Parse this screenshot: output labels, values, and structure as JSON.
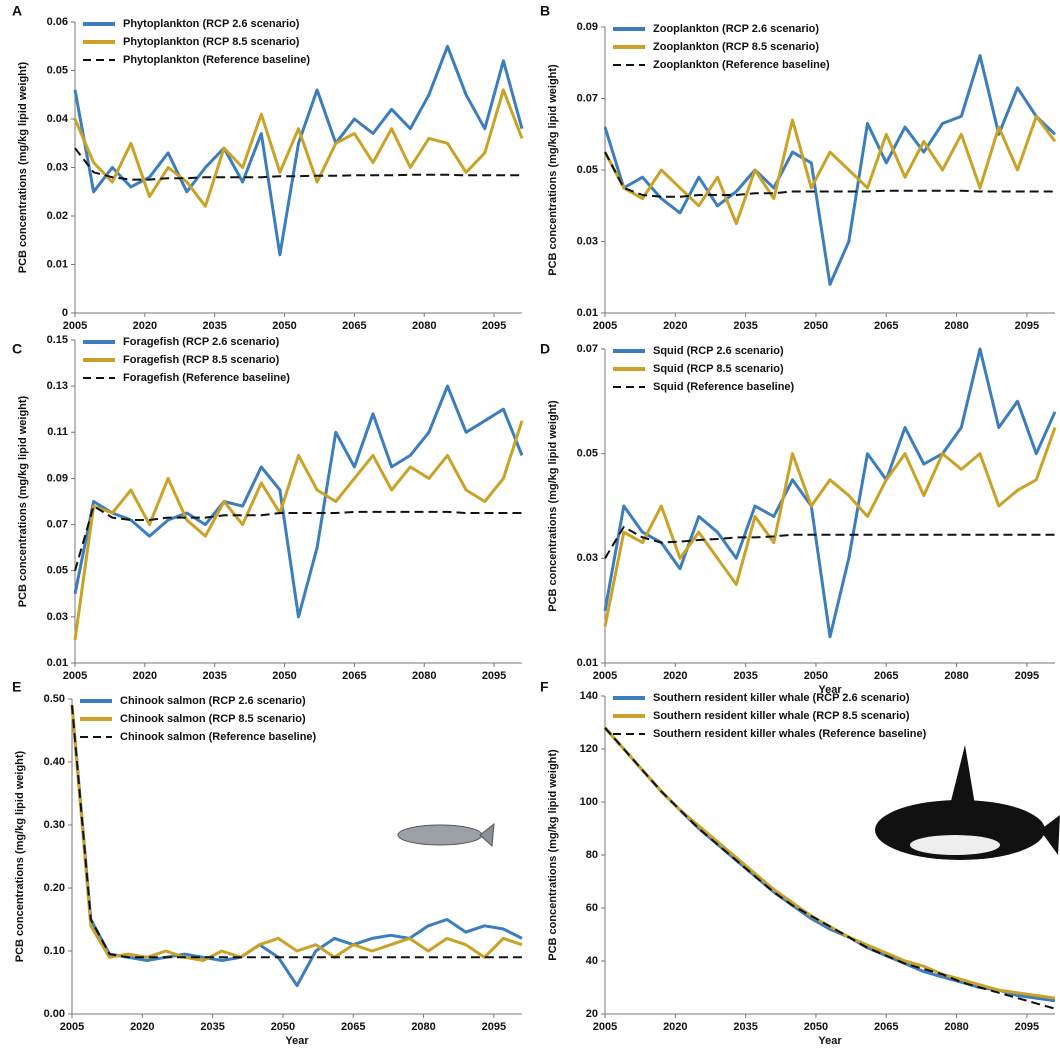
{
  "chart_data": [
    {
      "type": "line",
      "label": "A",
      "ylabel": "PCB concentrations (mg/kg lipid weight)",
      "x": [
        2005,
        2009,
        2013,
        2017,
        2021,
        2025,
        2029,
        2033,
        2037,
        2041,
        2045,
        2049,
        2053,
        2057,
        2061,
        2065,
        2069,
        2073,
        2077,
        2081,
        2085,
        2089,
        2093,
        2097,
        2101
      ],
      "xlim": [
        2005,
        2101
      ],
      "xticks": [
        2005,
        2020,
        2035,
        2050,
        2065,
        2080,
        2095
      ],
      "ylim": [
        0,
        0.06
      ],
      "yticks": [
        0,
        0.01,
        0.02,
        0.03,
        0.04,
        0.05,
        0.06
      ],
      "legend": "upper left",
      "series": [
        {
          "name": "Phytoplankton (RCP 2.6 scenario)",
          "color": "#3b7dbd",
          "linestyle": "solid",
          "values": [
            0.046,
            0.025,
            0.03,
            0.026,
            0.028,
            0.033,
            0.025,
            0.03,
            0.034,
            0.027,
            0.037,
            0.012,
            0.035,
            0.046,
            0.035,
            0.04,
            0.037,
            0.042,
            0.038,
            0.045,
            0.055,
            0.045,
            0.038,
            0.052,
            0.038
          ]
        },
        {
          "name": "Phytoplankton (RCP 8.5 scenario)",
          "color": "#c9a227",
          "linestyle": "solid",
          "values": [
            0.04,
            0.031,
            0.027,
            0.035,
            0.024,
            0.03,
            0.027,
            0.022,
            0.034,
            0.03,
            0.041,
            0.029,
            0.038,
            0.027,
            0.035,
            0.037,
            0.031,
            0.038,
            0.03,
            0.036,
            0.035,
            0.029,
            0.033,
            0.046,
            0.036
          ]
        },
        {
          "name": "Phytoplankton (Reference baseline)",
          "color": "#111111",
          "linestyle": "dashed",
          "values": [
            0.034,
            0.029,
            0.028,
            0.0275,
            0.0275,
            0.0278,
            0.0278,
            0.028,
            0.028,
            0.028,
            0.028,
            0.0282,
            0.0282,
            0.0283,
            0.0283,
            0.0284,
            0.0284,
            0.0284,
            0.0285,
            0.0285,
            0.0285,
            0.0284,
            0.0284,
            0.0284,
            0.0284
          ]
        }
      ]
    },
    {
      "type": "line",
      "label": "B",
      "ylabel": "PCB concentrations (mg/kg lipid weight)",
      "x": [
        2005,
        2009,
        2013,
        2017,
        2021,
        2025,
        2029,
        2033,
        2037,
        2041,
        2045,
        2049,
        2053,
        2057,
        2061,
        2065,
        2069,
        2073,
        2077,
        2081,
        2085,
        2089,
        2093,
        2097,
        2101
      ],
      "xlim": [
        2005,
        2101
      ],
      "xticks": [
        2005,
        2020,
        2035,
        2050,
        2065,
        2080,
        2095
      ],
      "ylim": [
        0.01,
        0.09
      ],
      "yticks": [
        0.01,
        0.03,
        0.05,
        0.07,
        0.09
      ],
      "legend": "upper left",
      "series": [
        {
          "name": "Zooplankton (RCP 2.6 scenario)",
          "color": "#3b7dbd",
          "linestyle": "solid",
          "values": [
            0.062,
            0.045,
            0.048,
            0.042,
            0.038,
            0.048,
            0.04,
            0.044,
            0.05,
            0.045,
            0.055,
            0.052,
            0.018,
            0.03,
            0.063,
            0.052,
            0.062,
            0.055,
            0.063,
            0.065,
            0.082,
            0.06,
            0.073,
            0.065,
            0.06
          ]
        },
        {
          "name": "Zooplankton (RCP 8.5 scenario)",
          "color": "#c9a227",
          "linestyle": "solid",
          "values": [
            0.055,
            0.045,
            0.042,
            0.05,
            0.045,
            0.04,
            0.048,
            0.035,
            0.05,
            0.042,
            0.064,
            0.045,
            0.055,
            0.05,
            0.045,
            0.06,
            0.048,
            0.058,
            0.05,
            0.06,
            0.045,
            0.062,
            0.05,
            0.065,
            0.058
          ]
        },
        {
          "name": "Zooplankton (Reference baseline)",
          "color": "#111111",
          "linestyle": "dashed",
          "values": [
            0.055,
            0.045,
            0.043,
            0.0425,
            0.0425,
            0.043,
            0.043,
            0.043,
            0.0435,
            0.0435,
            0.044,
            0.044,
            0.044,
            0.044,
            0.044,
            0.0442,
            0.0442,
            0.0442,
            0.0442,
            0.0442,
            0.044,
            0.044,
            0.044,
            0.044,
            0.044
          ]
        }
      ]
    },
    {
      "type": "line",
      "label": "C",
      "ylabel": "PCB concentrations (mg/kg lipid weight)",
      "x": [
        2005,
        2009,
        2013,
        2017,
        2021,
        2025,
        2029,
        2033,
        2037,
        2041,
        2045,
        2049,
        2053,
        2057,
        2061,
        2065,
        2069,
        2073,
        2077,
        2081,
        2085,
        2089,
        2093,
        2097,
        2101
      ],
      "xlim": [
        2005,
        2101
      ],
      "xticks": [
        2005,
        2020,
        2035,
        2050,
        2065,
        2080,
        2095
      ],
      "ylim": [
        0.01,
        0.15
      ],
      "yticks": [
        0.01,
        0.03,
        0.05,
        0.07,
        0.09,
        0.11,
        0.13,
        0.15
      ],
      "legend": "upper left",
      "series": [
        {
          "name": "Foragefish (RCP 2.6 scenario)",
          "color": "#3b7dbd",
          "linestyle": "solid",
          "values": [
            0.04,
            0.08,
            0.075,
            0.072,
            0.065,
            0.072,
            0.075,
            0.07,
            0.08,
            0.078,
            0.095,
            0.085,
            0.03,
            0.06,
            0.11,
            0.095,
            0.118,
            0.095,
            0.1,
            0.11,
            0.13,
            0.11,
            0.115,
            0.12,
            0.1
          ]
        },
        {
          "name": "Foragefish (RCP 8.5 scenario)",
          "color": "#c9a227",
          "linestyle": "solid",
          "values": [
            0.02,
            0.078,
            0.075,
            0.085,
            0.07,
            0.09,
            0.072,
            0.065,
            0.08,
            0.07,
            0.088,
            0.075,
            0.1,
            0.085,
            0.08,
            0.09,
            0.1,
            0.085,
            0.095,
            0.09,
            0.1,
            0.085,
            0.08,
            0.09,
            0.115
          ]
        },
        {
          "name": "Foragefish (Reference baseline)",
          "color": "#111111",
          "linestyle": "dashed",
          "values": [
            0.05,
            0.078,
            0.073,
            0.072,
            0.072,
            0.073,
            0.073,
            0.073,
            0.074,
            0.074,
            0.074,
            0.075,
            0.075,
            0.075,
            0.075,
            0.0755,
            0.0755,
            0.0755,
            0.0755,
            0.0755,
            0.0755,
            0.075,
            0.075,
            0.075,
            0.075
          ]
        }
      ]
    },
    {
      "type": "line",
      "label": "D",
      "ylabel": "PCB concentrations (mg/kg lipid weight)",
      "xlabel": "Year",
      "x": [
        2005,
        2009,
        2013,
        2017,
        2021,
        2025,
        2029,
        2033,
        2037,
        2041,
        2045,
        2049,
        2053,
        2057,
        2061,
        2065,
        2069,
        2073,
        2077,
        2081,
        2085,
        2089,
        2093,
        2097,
        2101
      ],
      "xlim": [
        2005,
        2101
      ],
      "xticks": [
        2005,
        2020,
        2035,
        2050,
        2065,
        2080,
        2095
      ],
      "ylim": [
        0.01,
        0.07
      ],
      "yticks": [
        0.01,
        0.03,
        0.05,
        0.07
      ],
      "legend": "upper left",
      "series": [
        {
          "name": "Squid (RCP 2.6 scenario)",
          "color": "#3b7dbd",
          "linestyle": "solid",
          "values": [
            0.02,
            0.04,
            0.035,
            0.033,
            0.028,
            0.038,
            0.035,
            0.03,
            0.04,
            0.038,
            0.045,
            0.04,
            0.015,
            0.03,
            0.05,
            0.045,
            0.055,
            0.048,
            0.05,
            0.055,
            0.07,
            0.055,
            0.06,
            0.05,
            0.058
          ]
        },
        {
          "name": "Squid (RCP 8.5 scenario)",
          "color": "#c9a227",
          "linestyle": "solid",
          "values": [
            0.017,
            0.035,
            0.033,
            0.04,
            0.03,
            0.035,
            0.03,
            0.025,
            0.038,
            0.033,
            0.05,
            0.04,
            0.045,
            0.042,
            0.038,
            0.045,
            0.05,
            0.042,
            0.05,
            0.047,
            0.05,
            0.04,
            0.043,
            0.045,
            0.055
          ]
        },
        {
          "name": "Squid (Reference baseline)",
          "color": "#111111",
          "linestyle": "dashed",
          "values": [
            0.03,
            0.036,
            0.034,
            0.033,
            0.0332,
            0.0335,
            0.0337,
            0.034,
            0.034,
            0.0342,
            0.0345,
            0.0345,
            0.0345,
            0.0345,
            0.0345,
            0.0345,
            0.0345,
            0.0345,
            0.0345,
            0.0345,
            0.0345,
            0.0345,
            0.0345,
            0.0345,
            0.0345
          ]
        }
      ]
    },
    {
      "type": "line",
      "label": "E",
      "ylabel": "PCB concentrations (mg/kg lipid weight)",
      "xlabel": "Year",
      "x": [
        2005,
        2009,
        2013,
        2017,
        2021,
        2025,
        2029,
        2033,
        2037,
        2041,
        2045,
        2049,
        2053,
        2057,
        2061,
        2065,
        2069,
        2073,
        2077,
        2081,
        2085,
        2089,
        2093,
        2097,
        2101
      ],
      "xlim": [
        2005,
        2101
      ],
      "xticks": [
        2005,
        2020,
        2035,
        2050,
        2065,
        2080,
        2095
      ],
      "ylim": [
        0,
        0.5
      ],
      "yticks": [
        {
          "value": 0,
          "label": "0.00"
        },
        {
          "value": 0.1,
          "label": "0.10"
        },
        {
          "value": 0.2,
          "label": "0.20"
        },
        {
          "value": 0.3,
          "label": "0.30"
        },
        {
          "value": 0.4,
          "label": "0.40"
        },
        {
          "value": 0.5,
          "label": "0.50"
        }
      ],
      "legend": "upper left",
      "series": [
        {
          "name": "Chinook salmon (RCP 2.6 scenario)",
          "color": "#3b7dbd",
          "linestyle": "solid",
          "values": [
            0.49,
            0.15,
            0.095,
            0.09,
            0.085,
            0.09,
            0.095,
            0.09,
            0.085,
            0.09,
            0.11,
            0.09,
            0.045,
            0.1,
            0.12,
            0.11,
            0.12,
            0.125,
            0.12,
            0.14,
            0.15,
            0.13,
            0.14,
            0.135,
            0.12
          ]
        },
        {
          "name": "Chinook salmon (RCP 8.5 scenario)",
          "color": "#c9a227",
          "linestyle": "solid",
          "values": [
            0.49,
            0.14,
            0.09,
            0.095,
            0.09,
            0.1,
            0.09,
            0.085,
            0.1,
            0.09,
            0.11,
            0.12,
            0.1,
            0.11,
            0.09,
            0.11,
            0.1,
            0.11,
            0.12,
            0.1,
            0.12,
            0.11,
            0.09,
            0.12,
            0.11
          ]
        },
        {
          "name": "Chinook salmon (Reference baseline)",
          "color": "#111111",
          "linestyle": "dashed",
          "values": [
            0.49,
            0.15,
            0.095,
            0.09,
            0.09,
            0.09,
            0.09,
            0.09,
            0.09,
            0.09,
            0.09,
            0.09,
            0.09,
            0.09,
            0.09,
            0.09,
            0.09,
            0.09,
            0.09,
            0.09,
            0.09,
            0.09,
            0.09,
            0.09,
            0.09
          ]
        }
      ]
    },
    {
      "type": "line",
      "label": "F",
      "ylabel": "PCB concentrations (mg/kg lipid weight)",
      "xlabel": "Year",
      "x": [
        2005,
        2009,
        2013,
        2017,
        2021,
        2025,
        2029,
        2033,
        2037,
        2041,
        2045,
        2049,
        2053,
        2057,
        2061,
        2065,
        2069,
        2073,
        2077,
        2081,
        2085,
        2089,
        2093,
        2097,
        2101
      ],
      "xlim": [
        2005,
        2101
      ],
      "xticks": [
        2005,
        2020,
        2035,
        2050,
        2065,
        2080,
        2095
      ],
      "ylim": [
        20,
        140
      ],
      "yticks": [
        20,
        40,
        60,
        80,
        100,
        120,
        140
      ],
      "legend": "upper left",
      "series": [
        {
          "name": "Southern resident killer whale (RCP 2.6 scenario)",
          "color": "#3b7dbd",
          "linestyle": "solid",
          "values": [
            128,
            120,
            112,
            104,
            97,
            90,
            84,
            78,
            72,
            66,
            61,
            56,
            52,
            49,
            45,
            42,
            39,
            36,
            34,
            32,
            30,
            29,
            27,
            26,
            25
          ]
        },
        {
          "name": "Southern resident killer whale (RCP 8.5 scenario)",
          "color": "#c9a227",
          "linestyle": "solid",
          "values": [
            128,
            120,
            112,
            104,
            97,
            91,
            85,
            79,
            73,
            67,
            62,
            57,
            53,
            49,
            46,
            43,
            40,
            38,
            35,
            33,
            31,
            29,
            28,
            27,
            26
          ]
        },
        {
          "name": "Southern resident killer whales (Reference baseline)",
          "color": "#111111",
          "linestyle": "dashed",
          "values": [
            128,
            120,
            112,
            104,
            97,
            90,
            84,
            78,
            72,
            66,
            61,
            57,
            53,
            49,
            45,
            42,
            39,
            37,
            35,
            32,
            30,
            28,
            26,
            24,
            22
          ]
        }
      ]
    }
  ]
}
